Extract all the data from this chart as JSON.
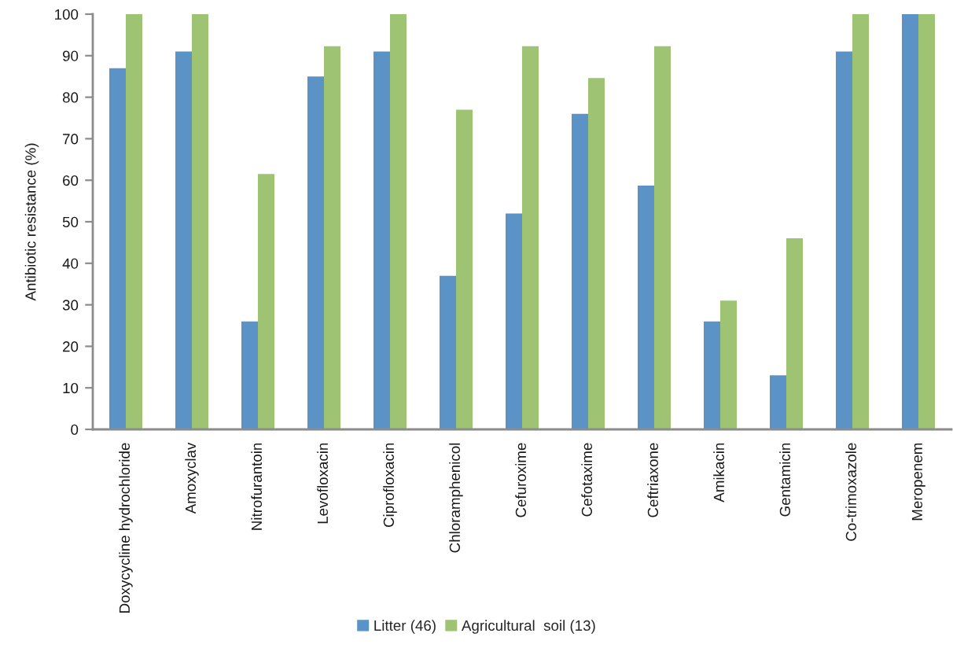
{
  "chart_data": {
    "type": "bar",
    "ylabel": "Antibiotic resistance (%)",
    "categories": [
      "Doxycycline hydrochloride",
      "Amoxyclav",
      "Nitrofurantoin",
      "Levofloxacin",
      "Ciprofloxacin",
      "Chloramphenicol",
      "Cefuroxime",
      "Cefotaxime",
      "Ceftriaxone",
      "Amikacin",
      "Gentamicin",
      "Co-trimoxazole",
      "Meropenem"
    ],
    "series": [
      {
        "name": "Litter (46)",
        "color": "#5b93c7",
        "values": [
          87,
          91,
          26,
          85,
          91,
          37,
          52,
          76,
          58.7,
          26,
          13,
          91,
          100
        ]
      },
      {
        "name": "Agricultural  soil (13)",
        "color": "#9dc373",
        "values": [
          100,
          100,
          61.5,
          92.3,
          100,
          77,
          92.3,
          84.6,
          92.3,
          31,
          46,
          100,
          100
        ]
      }
    ],
    "ylim": [
      0,
      100
    ],
    "yticks": [
      0,
      10,
      20,
      30,
      40,
      50,
      60,
      70,
      80,
      90,
      100
    ],
    "legend": "bottom"
  }
}
